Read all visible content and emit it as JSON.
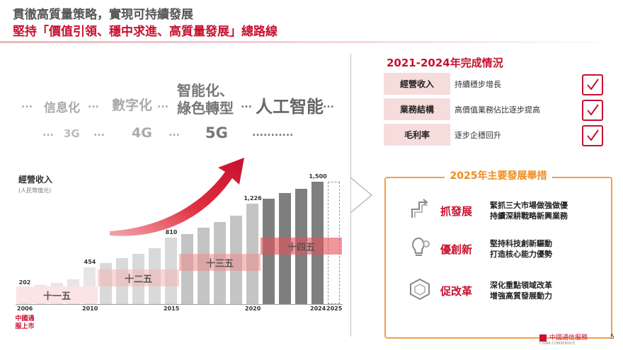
{
  "header": {
    "title_line1": "貫徹高質量策略，實現可持續發展",
    "title_line2": "堅持「價值引領、穩中求進、高質量發展」總路線"
  },
  "trends": {
    "row1": [
      "...",
      "信息化",
      "...",
      "數字化",
      "...",
      "智能化、",
      "綠色轉型",
      "...",
      "人工智能",
      "..."
    ],
    "row2": [
      "...",
      "3G",
      "...",
      "4G",
      "...",
      "5G",
      "..........."
    ]
  },
  "chart_data": {
    "type": "bar",
    "title": "經營收入",
    "ylabel": "(人民幣億元)",
    "x": [
      2006,
      2007,
      2008,
      2009,
      2010,
      2011,
      2012,
      2013,
      2014,
      2015,
      2016,
      2017,
      2018,
      2019,
      2020,
      2021,
      2022,
      2023,
      2024,
      2025
    ],
    "values": [
      202,
      230,
      260,
      300,
      454,
      500,
      560,
      610,
      680,
      810,
      860,
      930,
      1000,
      1080,
      1226,
      1290,
      1360,
      1410,
      1500,
      1500
    ],
    "value_labels": {
      "2006": "202",
      "2010": "454",
      "2015": "810",
      "2020": "1,226",
      "2024": "1,500"
    },
    "tick_labels": [
      "2006",
      "2010",
      "2015",
      "2020",
      "2024",
      "2025"
    ],
    "ylim": [
      0,
      1600
    ],
    "periods": [
      {
        "label": "十一五",
        "start": 2006,
        "end": 2010
      },
      {
        "label": "十二五",
        "start": 2011,
        "end": 2015
      },
      {
        "label": "十三五",
        "start": 2016,
        "end": 2020
      },
      {
        "label": "十四五",
        "start": 2021,
        "end": 2025
      }
    ],
    "projected": [
      2025
    ],
    "colors": {
      "light": "#e6e6e6",
      "mid": "#c4c4c4",
      "dark": "#7f7f7f",
      "accent": "#c8102e"
    }
  },
  "listing_note": "中國通服上市",
  "status_2021_2024": {
    "title": "2021-2024年完成情況",
    "rows": [
      {
        "key": "經營收入",
        "value": "持續穩步增長"
      },
      {
        "key": "業務結構",
        "value": "高價值業務佔比逐步提高"
      },
      {
        "key": "毛利率",
        "value": "逐步企穩回升"
      }
    ]
  },
  "measures_2025": {
    "title": "2025年主要發展舉措",
    "items": [
      {
        "label": "抓發展",
        "icon": "path-arrow-icon",
        "lines": [
          "緊抓三大市場做強做優",
          "持續深耕戰略新興業務"
        ]
      },
      {
        "label": "優創新",
        "icon": "lightbulb-gear-icon",
        "lines": [
          "堅持科技創新驅動",
          "打造核心能力優勢"
        ]
      },
      {
        "label": "促改革",
        "icon": "cube-icon",
        "lines": [
          "深化重點領域改革",
          "增強高質發展動力"
        ]
      }
    ]
  },
  "footer": {
    "logo_text": "中國通信服務",
    "logo_sub": "CHINA COMSERVICE",
    "page_number": "5"
  }
}
